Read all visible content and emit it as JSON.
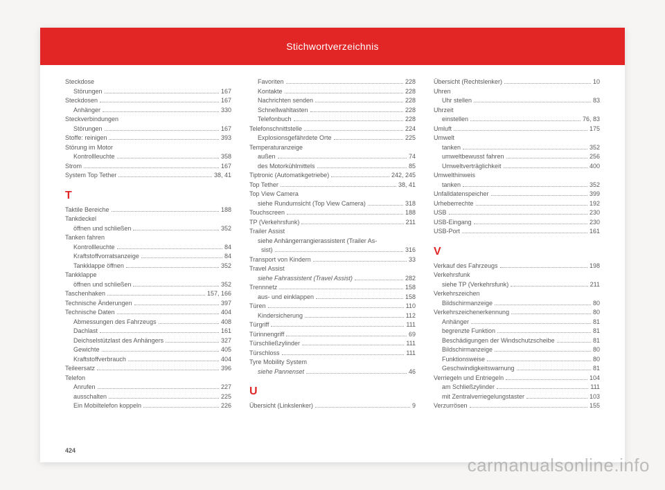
{
  "header_title": "Stichwortverzeichnis",
  "page_number": "424",
  "watermark": "carmanualsonline.info",
  "columns": [
    [
      {
        "t": "entry",
        "label": "Steckdose"
      },
      {
        "t": "entry",
        "sub": true,
        "label": "Störungen",
        "pg": "167"
      },
      {
        "t": "entry",
        "label": "Steckdosen",
        "pg": "167"
      },
      {
        "t": "entry",
        "sub": true,
        "label": "Anhänger",
        "pg": "330"
      },
      {
        "t": "entry",
        "label": "Steckverbindungen"
      },
      {
        "t": "entry",
        "sub": true,
        "label": "Störungen",
        "pg": "167"
      },
      {
        "t": "entry",
        "label": "Stoffe: reinigen",
        "pg": "393"
      },
      {
        "t": "entry",
        "label": "Störung im Motor"
      },
      {
        "t": "entry",
        "sub": true,
        "label": "Kontrollleuchte",
        "pg": "358"
      },
      {
        "t": "entry",
        "label": "Strom",
        "pg": "167"
      },
      {
        "t": "entry",
        "label": "System Top Tether",
        "pg": "38, 41"
      },
      {
        "t": "letter",
        "label": "T"
      },
      {
        "t": "entry",
        "label": "Taktile Bereiche",
        "pg": "188"
      },
      {
        "t": "entry",
        "label": "Tankdeckel"
      },
      {
        "t": "entry",
        "sub": true,
        "label": "öffnen und schließen",
        "pg": "352"
      },
      {
        "t": "entry",
        "label": "Tanken fahren"
      },
      {
        "t": "entry",
        "sub": true,
        "label": "Kontrollleuchte",
        "pg": "84"
      },
      {
        "t": "entry",
        "sub": true,
        "label": "Kraftstoffvorratsanzeige",
        "pg": "84"
      },
      {
        "t": "entry",
        "sub": true,
        "label": "Tankklappe öffnen",
        "pg": "352"
      },
      {
        "t": "entry",
        "label": "Tankklappe"
      },
      {
        "t": "entry",
        "sub": true,
        "label": "öffnen und schließen",
        "pg": "352"
      },
      {
        "t": "entry",
        "label": "Taschenhaken",
        "pg": "157, 166"
      },
      {
        "t": "entry",
        "label": "Technische Änderungen",
        "pg": "397"
      },
      {
        "t": "entry",
        "label": "Technische Daten",
        "pg": "404"
      },
      {
        "t": "entry",
        "sub": true,
        "label": "Abmessungen des Fahrzeugs",
        "pg": "408"
      },
      {
        "t": "entry",
        "sub": true,
        "label": "Dachlast",
        "pg": "161"
      },
      {
        "t": "entry",
        "sub": true,
        "label": "Deichselstützlast des Anhängers",
        "pg": "327"
      },
      {
        "t": "entry",
        "sub": true,
        "label": "Gewichte",
        "pg": "405"
      },
      {
        "t": "entry",
        "sub": true,
        "label": "Kraftstoffverbrauch",
        "pg": "404"
      },
      {
        "t": "entry",
        "label": "Teileersatz",
        "pg": "396"
      },
      {
        "t": "entry",
        "label": "Telefon"
      },
      {
        "t": "entry",
        "sub": true,
        "label": "Anrufen",
        "pg": "227"
      },
      {
        "t": "entry",
        "sub": true,
        "label": "ausschalten",
        "pg": "225"
      },
      {
        "t": "entry",
        "sub": true,
        "label": "Ein Mobiltelefon koppeln",
        "pg": "226"
      }
    ],
    [
      {
        "t": "entry",
        "sub": true,
        "label": "Favoriten",
        "pg": "228"
      },
      {
        "t": "entry",
        "sub": true,
        "label": "Kontakte",
        "pg": "228"
      },
      {
        "t": "entry",
        "sub": true,
        "label": "Nachrichten senden",
        "pg": "228"
      },
      {
        "t": "entry",
        "sub": true,
        "label": "Schnellwahltasten",
        "pg": "228"
      },
      {
        "t": "entry",
        "sub": true,
        "label": "Telefonbuch",
        "pg": "228"
      },
      {
        "t": "entry",
        "label": "Telefonschnittstelle",
        "pg": "224"
      },
      {
        "t": "entry",
        "sub": true,
        "label": "Explosionsgefährdete Orte",
        "pg": "225"
      },
      {
        "t": "entry",
        "label": "Temperaturanzeige"
      },
      {
        "t": "entry",
        "sub": true,
        "label": "außen",
        "pg": "74"
      },
      {
        "t": "entry",
        "sub": true,
        "label": "des Motorkühlmittels",
        "pg": "85"
      },
      {
        "t": "entry",
        "label": "Tiptronic (Automatikgetriebe)",
        "pg": "242, 245"
      },
      {
        "t": "entry",
        "label": "Top Tether",
        "pg": "38, 41"
      },
      {
        "t": "entry",
        "label": "Top View Camera"
      },
      {
        "t": "entry",
        "sub": true,
        "label": "siehe Rundumsicht (Top View Camera)",
        "pg": "318"
      },
      {
        "t": "entry",
        "label": "Touchscreen",
        "pg": "188"
      },
      {
        "t": "entry",
        "label": "TP (Verkehrsfunk)",
        "pg": "211"
      },
      {
        "t": "entry",
        "label": "Trailer Assist"
      },
      {
        "t": "entry",
        "sub": true,
        "label": "siehe Anhängerrangierassistent (Trailer As-"
      },
      {
        "t": "entry",
        "sub": true,
        "label": "  sist)",
        "pg": "316"
      },
      {
        "t": "entry",
        "label": "Transport von Kindern",
        "pg": "33"
      },
      {
        "t": "entry",
        "label": "Travel Assist"
      },
      {
        "t": "entry",
        "sub": true,
        "label": "siehe Fahrassistent (Travel Assist)",
        "pg": "282",
        "italic": true
      },
      {
        "t": "entry",
        "label": "Trennnetz",
        "pg": "158"
      },
      {
        "t": "entry",
        "sub": true,
        "label": "aus- und einklappen",
        "pg": "158"
      },
      {
        "t": "entry",
        "label": "Türen",
        "pg": "110"
      },
      {
        "t": "entry",
        "sub": true,
        "label": "Kindersicherung",
        "pg": "112"
      },
      {
        "t": "entry",
        "label": "Türgriff",
        "pg": "111"
      },
      {
        "t": "entry",
        "label": "Türinnengriff",
        "pg": "69"
      },
      {
        "t": "entry",
        "label": "Türschließzylinder",
        "pg": "111"
      },
      {
        "t": "entry",
        "label": "Türschloss",
        "pg": "111"
      },
      {
        "t": "entry",
        "label": "Tyre Mobility System"
      },
      {
        "t": "entry",
        "sub": true,
        "label": "siehe Pannenset",
        "pg": "46",
        "italic": true
      },
      {
        "t": "letter",
        "label": "U"
      },
      {
        "t": "entry",
        "label": "Übersicht (Linkslenker)",
        "pg": "9"
      }
    ],
    [
      {
        "t": "entry",
        "label": "Übersicht (Rechtslenker)",
        "pg": "10"
      },
      {
        "t": "entry",
        "label": "Uhren"
      },
      {
        "t": "entry",
        "sub": true,
        "label": "Uhr stellen",
        "pg": "83"
      },
      {
        "t": "entry",
        "label": "Uhrzeit"
      },
      {
        "t": "entry",
        "sub": true,
        "label": "einstellen",
        "pg": "76, 83"
      },
      {
        "t": "entry",
        "label": "Umluft",
        "pg": "175"
      },
      {
        "t": "entry",
        "label": "Umwelt"
      },
      {
        "t": "entry",
        "sub": true,
        "label": "tanken",
        "pg": "352"
      },
      {
        "t": "entry",
        "sub": true,
        "label": "umweltbewusst fahren",
        "pg": "256"
      },
      {
        "t": "entry",
        "sub": true,
        "label": "Umweltverträglichkeit",
        "pg": "400"
      },
      {
        "t": "entry",
        "label": "Umwelthinweis"
      },
      {
        "t": "entry",
        "sub": true,
        "label": "tanken",
        "pg": "352"
      },
      {
        "t": "entry",
        "label": "Unfalldatenspeicher",
        "pg": "399"
      },
      {
        "t": "entry",
        "label": "Urheberrechte",
        "pg": "192"
      },
      {
        "t": "entry",
        "label": "USB",
        "pg": "230"
      },
      {
        "t": "entry",
        "label": "USB-Eingang",
        "pg": "230"
      },
      {
        "t": "entry",
        "label": "USB-Port",
        "pg": "161"
      },
      {
        "t": "letter",
        "label": "V"
      },
      {
        "t": "entry",
        "label": "Verkauf des Fahrzeugs",
        "pg": "198"
      },
      {
        "t": "entry",
        "label": "Verkehrsfunk"
      },
      {
        "t": "entry",
        "sub": true,
        "label": "siehe TP (Verkehrsfunk)",
        "pg": "211"
      },
      {
        "t": "entry",
        "label": "Verkehrszeichen"
      },
      {
        "t": "entry",
        "sub": true,
        "label": "Bildschirmanzeige",
        "pg": "80"
      },
      {
        "t": "entry",
        "label": "Verkehrszeichenerkennung",
        "pg": "80"
      },
      {
        "t": "entry",
        "sub": true,
        "label": "Anhänger",
        "pg": "81"
      },
      {
        "t": "entry",
        "sub": true,
        "label": "begrenzte Funktion",
        "pg": "81"
      },
      {
        "t": "entry",
        "sub": true,
        "label": "Beschädigungen der Windschutzscheibe",
        "pg": "81"
      },
      {
        "t": "entry",
        "sub": true,
        "label": "Bildschirmanzeige",
        "pg": "80"
      },
      {
        "t": "entry",
        "sub": true,
        "label": "Funktionsweise",
        "pg": "80"
      },
      {
        "t": "entry",
        "sub": true,
        "label": "Geschwindigkeitswarnung",
        "pg": "81"
      },
      {
        "t": "entry",
        "label": "Verriegeln und Entriegeln",
        "pg": "104"
      },
      {
        "t": "entry",
        "sub": true,
        "label": "am Schließzylinder",
        "pg": "111"
      },
      {
        "t": "entry",
        "sub": true,
        "label": "mit Zentralverriegelungstaster",
        "pg": "103"
      },
      {
        "t": "entry",
        "label": "Verzurrösen",
        "pg": "155"
      }
    ]
  ]
}
